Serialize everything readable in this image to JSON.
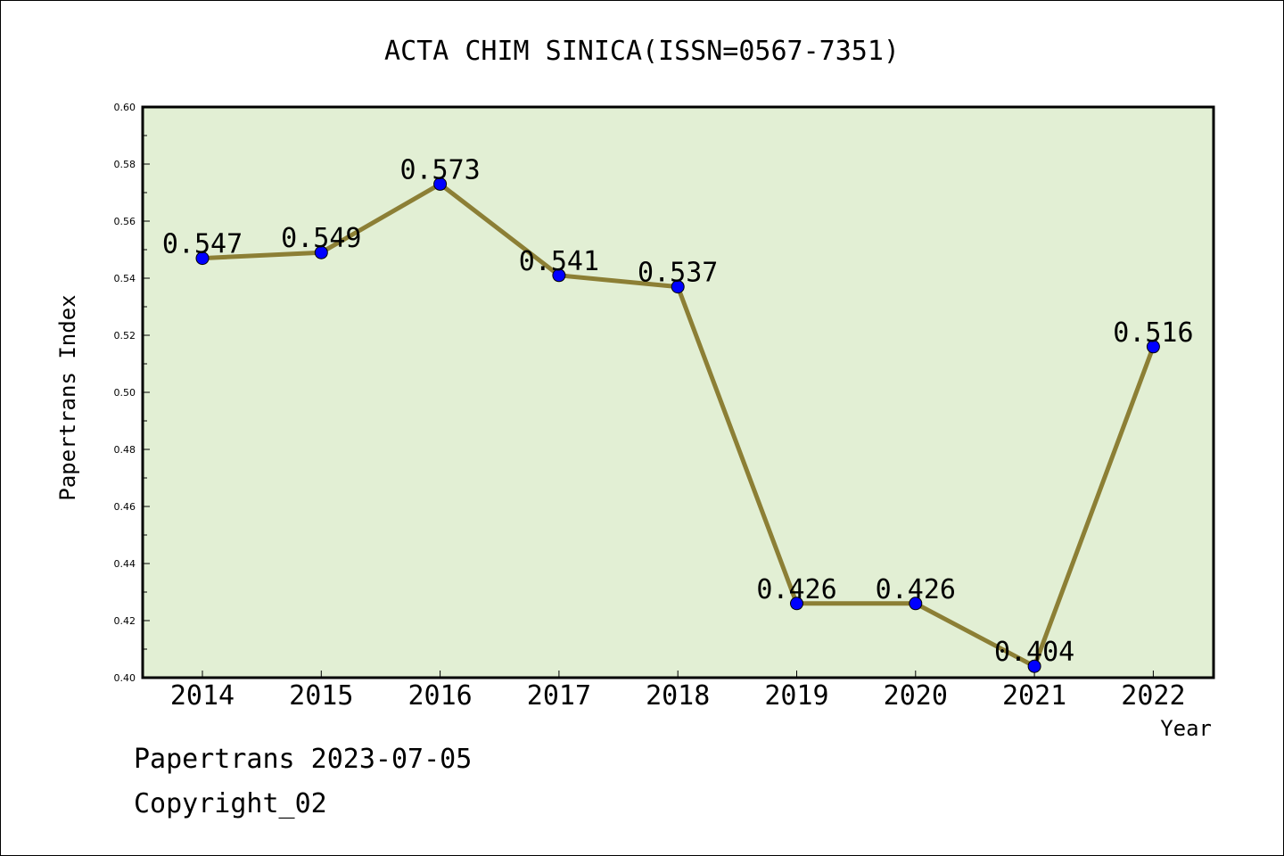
{
  "chart_data": {
    "type": "line",
    "title": "ACTA CHIM SINICA(ISSN=0567-7351)",
    "xlabel": "Year",
    "ylabel": "Papertrans Index",
    "categories": [
      "2014",
      "2015",
      "2016",
      "2017",
      "2018",
      "2019",
      "2020",
      "2021",
      "2022"
    ],
    "series": [
      {
        "values": [
          0.547,
          0.549,
          0.573,
          0.541,
          0.537,
          0.426,
          0.426,
          0.404,
          0.516
        ],
        "data_labels": [
          "0.547",
          "0.549",
          "0.573",
          "0.541",
          "0.537",
          "0.426",
          "0.426",
          "0.404",
          "0.516"
        ]
      }
    ],
    "ylim": [
      0.4,
      0.6
    ],
    "yticks": [
      "0.40",
      "0.42",
      "0.44",
      "0.46",
      "0.48",
      "0.50",
      "0.52",
      "0.54",
      "0.56",
      "0.58",
      "0.60"
    ],
    "grid": false,
    "legend": "none",
    "colors": {
      "plot_background": "#e2efd4",
      "line": "#8c7f35",
      "marker": "#0000ff"
    }
  },
  "footer": {
    "date_text": "Papertrans 2023-07-05",
    "copyright_text": "Copyright_02"
  }
}
